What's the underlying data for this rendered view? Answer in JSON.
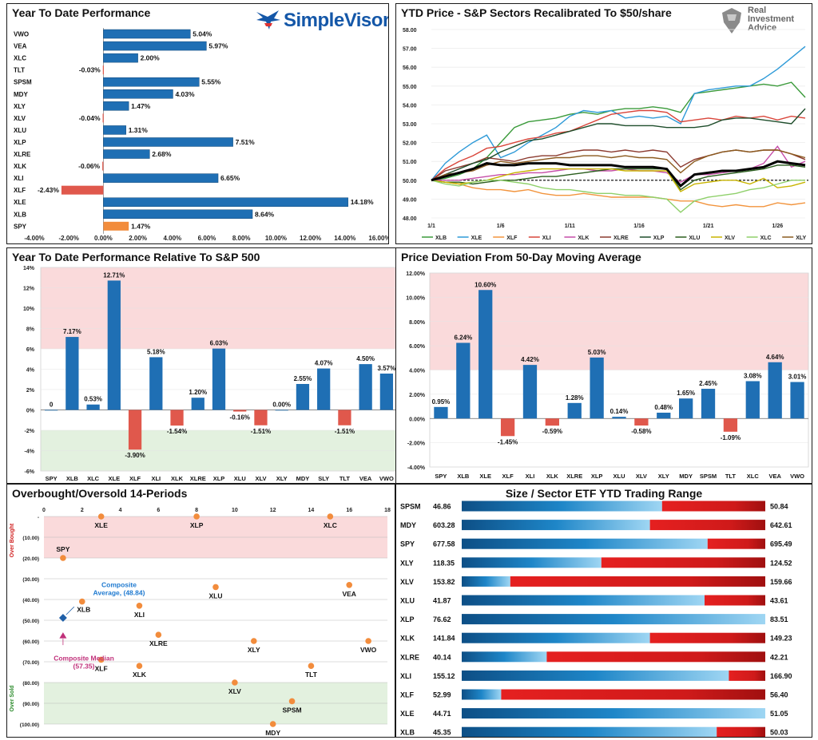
{
  "logos": {
    "simplevisor": "SimpleVisor",
    "simplevisor_mark": "™",
    "ria_line1": "Real",
    "ria_line2": "Investment",
    "ria_line3": "Advice"
  },
  "colors": {
    "blue": "#1f6fb4",
    "red": "#e0584c",
    "orange": "#f28c3c",
    "green_zone": "#e3f1df",
    "red_zone": "#fadadb"
  },
  "chart_data": [
    {
      "id": "ytd",
      "type": "bar",
      "orientation": "horizontal",
      "title": "Year To Date Performance",
      "categories": [
        "VWO",
        "VEA",
        "XLC",
        "TLT",
        "SPSM",
        "MDY",
        "XLY",
        "XLV",
        "XLU",
        "XLP",
        "XLRE",
        "XLK",
        "XLI",
        "XLF",
        "XLE",
        "XLB",
        "SPY"
      ],
      "values": [
        5.04,
        5.97,
        2.0,
        -0.03,
        5.55,
        4.03,
        1.47,
        -0.04,
        1.31,
        7.51,
        2.68,
        -0.06,
        6.65,
        -2.43,
        14.18,
        8.64,
        1.47
      ],
      "labels": [
        "5.04%",
        "5.97%",
        "2.00%",
        "-0.03%",
        "5.55%",
        "4.03%",
        "1.47%",
        "-0.04%",
        "1.31%",
        "7.51%",
        "2.68%",
        "-0.06%",
        "6.65%",
        "-2.43%",
        "14.18%",
        "8.64%",
        "1.47%"
      ],
      "highlight": "SPY",
      "xlim": [
        -4,
        16
      ],
      "xticks": [
        "-4.00%",
        "-2.00%",
        "0.00%",
        "2.00%",
        "4.00%",
        "6.00%",
        "8.00%",
        "10.00%",
        "12.00%",
        "14.00%",
        "16.00%"
      ]
    },
    {
      "id": "sectors_50",
      "type": "line",
      "title": "YTD Price - S&P Sectors Recalibrated To $50/share",
      "x_labels": [
        "1/1",
        "1/6",
        "1/11",
        "1/16",
        "1/21",
        "1/26"
      ],
      "ylim": [
        48,
        58
      ],
      "yticks": [
        "48.00",
        "49.00",
        "50.00",
        "51.00",
        "52.00",
        "53.00",
        "54.00",
        "55.00",
        "56.00",
        "57.00",
        "58.00"
      ],
      "baseline": 50,
      "series": [
        {
          "name": "XLB",
          "color": "#3a9a3a",
          "values": [
            50.0,
            50.1,
            50.3,
            50.6,
            51.2,
            52.0,
            52.8,
            53.1,
            53.2,
            53.3,
            53.5,
            53.6,
            53.5,
            53.7,
            53.8,
            53.8,
            53.9,
            53.8,
            53.6,
            54.6,
            54.7,
            54.8,
            54.9,
            55.0,
            55.1,
            55.0,
            55.2,
            54.4
          ]
        },
        {
          "name": "XLE",
          "color": "#2e9ad8",
          "values": [
            50.0,
            50.9,
            51.5,
            52.0,
            52.4,
            51.2,
            51.5,
            52.0,
            52.4,
            52.8,
            53.4,
            53.7,
            53.6,
            53.7,
            53.3,
            53.4,
            53.3,
            53.4,
            53.0,
            54.6,
            54.8,
            54.9,
            55.0,
            55.0,
            55.4,
            55.9,
            56.5,
            57.1
          ]
        },
        {
          "name": "XLF",
          "color": "#f2943d",
          "values": [
            50.0,
            49.9,
            49.8,
            49.6,
            49.5,
            49.5,
            49.4,
            49.5,
            49.3,
            49.2,
            49.2,
            49.3,
            49.2,
            49.1,
            49.1,
            49.1,
            49.1,
            49.0,
            48.9,
            48.9,
            48.7,
            48.6,
            48.7,
            48.6,
            48.6,
            48.8,
            48.7,
            48.8
          ]
        },
        {
          "name": "XLI",
          "color": "#d9453a",
          "values": [
            50.0,
            50.6,
            51.0,
            51.3,
            51.7,
            51.8,
            52.0,
            52.2,
            52.3,
            52.5,
            52.6,
            52.9,
            53.2,
            53.5,
            53.6,
            53.7,
            53.7,
            53.6,
            53.1,
            53.2,
            53.3,
            53.2,
            53.4,
            53.3,
            53.4,
            53.2,
            53.4,
            53.3
          ]
        },
        {
          "name": "XLK",
          "color": "#c64ea8",
          "values": [
            50.0,
            50.0,
            50.0,
            50.1,
            50.2,
            50.3,
            50.3,
            50.4,
            50.4,
            50.5,
            50.6,
            50.6,
            50.5,
            50.5,
            50.6,
            50.5,
            50.5,
            50.4,
            49.9,
            50.3,
            50.3,
            50.4,
            50.5,
            50.6,
            50.9,
            51.8,
            50.7,
            51.0
          ]
        },
        {
          "name": "XLRE",
          "color": "#8b3a2f",
          "values": [
            50.0,
            50.5,
            50.7,
            50.9,
            51.2,
            51.1,
            51.0,
            51.2,
            51.3,
            51.3,
            51.5,
            51.6,
            51.6,
            51.5,
            51.6,
            51.5,
            51.6,
            51.5,
            50.7,
            51.1,
            51.3,
            51.5,
            51.6,
            51.5,
            51.6,
            51.6,
            51.4,
            51.1
          ]
        },
        {
          "name": "XLP",
          "color": "#1e4d2b",
          "values": [
            50.0,
            50.3,
            50.6,
            50.9,
            51.1,
            51.5,
            51.8,
            52.1,
            52.2,
            52.4,
            52.6,
            52.8,
            53.0,
            53.0,
            52.9,
            52.9,
            52.9,
            52.8,
            52.8,
            52.8,
            52.9,
            53.2,
            53.3,
            53.3,
            53.2,
            53.1,
            53.0,
            53.8
          ]
        },
        {
          "name": "XLU",
          "color": "#2a5d1d",
          "values": [
            50.0,
            49.9,
            49.9,
            49.8,
            49.9,
            50.0,
            50.0,
            50.1,
            50.2,
            50.2,
            50.3,
            50.4,
            50.5,
            50.6,
            50.6,
            50.6,
            50.6,
            50.6,
            49.5,
            50.0,
            50.2,
            50.3,
            50.4,
            50.5,
            50.6,
            50.8,
            50.8,
            50.7
          ]
        },
        {
          "name": "XLV",
          "color": "#c8b400",
          "values": [
            50.0,
            49.9,
            49.8,
            49.9,
            50.0,
            50.2,
            50.4,
            50.5,
            50.6,
            50.6,
            50.6,
            50.6,
            50.6,
            50.6,
            50.5,
            50.5,
            50.5,
            50.5,
            49.4,
            49.8,
            49.9,
            50.0,
            50.0,
            49.8,
            50.1,
            49.6,
            49.7,
            49.9
          ]
        },
        {
          "name": "XLC",
          "color": "#8fd06b",
          "values": [
            50.0,
            49.8,
            49.7,
            49.9,
            50.0,
            50.0,
            49.9,
            49.8,
            49.6,
            49.5,
            49.5,
            49.4,
            49.3,
            49.3,
            49.2,
            49.2,
            49.1,
            49.0,
            48.3,
            48.9,
            49.1,
            49.2,
            49.3,
            49.5,
            49.6,
            49.8,
            50.0,
            50.0
          ]
        },
        {
          "name": "XLY",
          "color": "#8b5a1f",
          "values": [
            50.0,
            50.3,
            50.4,
            50.5,
            50.8,
            51.0,
            50.9,
            51.0,
            51.1,
            51.2,
            51.2,
            51.3,
            51.3,
            51.2,
            51.3,
            51.2,
            51.2,
            51.1,
            50.4,
            51.0,
            51.3,
            51.5,
            51.6,
            51.5,
            51.6,
            51.6,
            51.4,
            51.2
          ]
        },
        {
          "name": "SPY",
          "color": "#000000",
          "values": [
            50.0,
            50.2,
            50.4,
            50.6,
            50.9,
            50.8,
            50.8,
            50.9,
            50.9,
            50.9,
            50.8,
            50.8,
            50.8,
            50.8,
            50.7,
            50.7,
            50.7,
            50.6,
            49.7,
            50.3,
            50.4,
            50.5,
            50.5,
            50.6,
            50.7,
            51.0,
            50.9,
            50.8
          ]
        }
      ]
    },
    {
      "id": "relative",
      "type": "bar",
      "title": "Year To Date Performance Relative To S&P 500",
      "categories": [
        "SPY",
        "XLB",
        "XLC",
        "XLE",
        "XLF",
        "XLI",
        "XLK",
        "XLRE",
        "XLP",
        "XLU",
        "XLV",
        "XLY",
        "MDY",
        "SLY",
        "TLT",
        "VEA",
        "VWO"
      ],
      "values": [
        0,
        7.17,
        0.53,
        12.71,
        -3.9,
        5.18,
        -1.54,
        1.2,
        6.03,
        -0.16,
        -1.51,
        0.0,
        2.55,
        4.07,
        -1.51,
        4.5,
        3.57
      ],
      "labels": [
        "0",
        "7.17%",
        "0.53%",
        "12.71%",
        "-3.90%",
        "5.18%",
        "-1.54%",
        "1.20%",
        "6.03%",
        "-0.16%",
        "-1.51%",
        "0.00%",
        "2.55%",
        "4.07%",
        "-1.51%",
        "4.50%",
        "3.57%"
      ],
      "ylim": [
        -6,
        14
      ],
      "yticks": [
        "-6%",
        "-4%",
        "-2%",
        "0%",
        "2%",
        "4%",
        "6%",
        "8%",
        "10%",
        "12%",
        "14%"
      ],
      "red_zone_from": 6,
      "green_zone_to": -2
    },
    {
      "id": "deviation",
      "type": "bar",
      "title": "Price Deviation From 50-Day Moving Average",
      "categories": [
        "SPY",
        "XLB",
        "XLE",
        "XLF",
        "XLI",
        "XLK",
        "XLRE",
        "XLP",
        "XLU",
        "XLV",
        "XLY",
        "MDY",
        "SPSM",
        "TLT",
        "XLC",
        "VEA",
        "VWO"
      ],
      "values": [
        0.95,
        6.24,
        10.6,
        -1.45,
        4.42,
        -0.59,
        1.28,
        5.03,
        0.14,
        -0.58,
        0.48,
        1.65,
        2.45,
        -1.09,
        3.08,
        4.64,
        3.01
      ],
      "labels": [
        "0.95%",
        "6.24%",
        "10.60%",
        "-1.45%",
        "4.42%",
        "-0.59%",
        "1.28%",
        "5.03%",
        "0.14%",
        "-0.58%",
        "0.48%",
        "1.65%",
        "2.45%",
        "-1.09%",
        "3.08%",
        "4.64%",
        "3.01%"
      ],
      "ylim": [
        -4,
        12
      ],
      "yticks": [
        "-4.00%",
        "-2.00%",
        "0.00%",
        "2.00%",
        "4.00%",
        "6.00%",
        "8.00%",
        "10.00%",
        "12.00%"
      ],
      "red_zone_from": 4
    },
    {
      "id": "obos",
      "type": "scatter",
      "title": "Overbought/Oversold 14-Periods",
      "xlim": [
        0,
        18
      ],
      "xticks": [
        "0",
        "2",
        "4",
        "6",
        "8",
        "10",
        "12",
        "14",
        "16",
        "18"
      ],
      "ylim": [
        0,
        100
      ],
      "yticks": [
        "-",
        "(10.00)",
        "(20.00)",
        "(30.00)",
        "(40.00)",
        "(50.00)",
        "(60.00)",
        "(70.00)",
        "(80.00)",
        "(90.00)",
        "(100.00)"
      ],
      "ylabel_top": "Over Bought",
      "ylabel_bottom": "Over Sold",
      "overbought_to": 20,
      "oversold_from": 80,
      "points": [
        {
          "label": "XLE",
          "x": 3,
          "y": 0
        },
        {
          "label": "XLP",
          "x": 8,
          "y": 0
        },
        {
          "label": "XLC",
          "x": 15,
          "y": 0
        },
        {
          "label": "SPY",
          "x": 1,
          "y": 20
        },
        {
          "label": "XLU",
          "x": 9,
          "y": 34
        },
        {
          "label": "VEA",
          "x": 16,
          "y": 33
        },
        {
          "label": "XLB",
          "x": 2,
          "y": 41
        },
        {
          "label": "XLI",
          "x": 5,
          "y": 43
        },
        {
          "label": "XLRE",
          "x": 6,
          "y": 57
        },
        {
          "label": "XLY",
          "x": 11,
          "y": 60
        },
        {
          "label": "VWO",
          "x": 17,
          "y": 60
        },
        {
          "label": "XLF",
          "x": 3,
          "y": 69
        },
        {
          "label": "XLK",
          "x": 5,
          "y": 72
        },
        {
          "label": "TLT",
          "x": 14,
          "y": 72
        },
        {
          "label": "XLV",
          "x": 10,
          "y": 80
        },
        {
          "label": "SPSM",
          "x": 13,
          "y": 89
        },
        {
          "label": "MDY",
          "x": 12,
          "y": 100
        }
      ],
      "composite_average": {
        "label_line1": "Composite",
        "label_line2": "Average,  (48.84)",
        "x": 1,
        "y": 48.84
      },
      "composite_median": {
        "label_line1": "Composite Median",
        "label_line2": "(57.35)",
        "x": 1,
        "y": 57.35
      }
    },
    {
      "id": "range",
      "type": "bar",
      "orientation": "horizontal",
      "title": "Size / Sector ETF YTD Trading Range",
      "rows": [
        {
          "ticker": "SPSM",
          "low": "46.86",
          "high": "50.84",
          "position": 0.66
        },
        {
          "ticker": "MDY",
          "low": "603.28",
          "high": "642.61",
          "position": 0.62
        },
        {
          "ticker": "SPY",
          "low": "677.58",
          "high": "695.49",
          "position": 0.81
        },
        {
          "ticker": "XLY",
          "low": "118.35",
          "high": "124.52",
          "position": 0.46
        },
        {
          "ticker": "XLV",
          "low": "153.82",
          "high": "159.66",
          "position": 0.16
        },
        {
          "ticker": "XLU",
          "low": "41.87",
          "high": "43.61",
          "position": 0.8
        },
        {
          "ticker": "XLP",
          "low": "76.62",
          "high": "83.51",
          "position": 1.0
        },
        {
          "ticker": "XLK",
          "low": "141.84",
          "high": "149.23",
          "position": 0.62
        },
        {
          "ticker": "XLRE",
          "low": "40.14",
          "high": "42.21",
          "position": 0.28
        },
        {
          "ticker": "XLI",
          "low": "155.12",
          "high": "166.90",
          "position": 0.88
        },
        {
          "ticker": "XLF",
          "low": "52.99",
          "high": "56.40",
          "position": 0.13
        },
        {
          "ticker": "XLE",
          "low": "44.71",
          "high": "51.05",
          "position": 1.0
        },
        {
          "ticker": "XLB",
          "low": "45.35",
          "high": "50.03",
          "position": 0.84
        }
      ]
    }
  ]
}
